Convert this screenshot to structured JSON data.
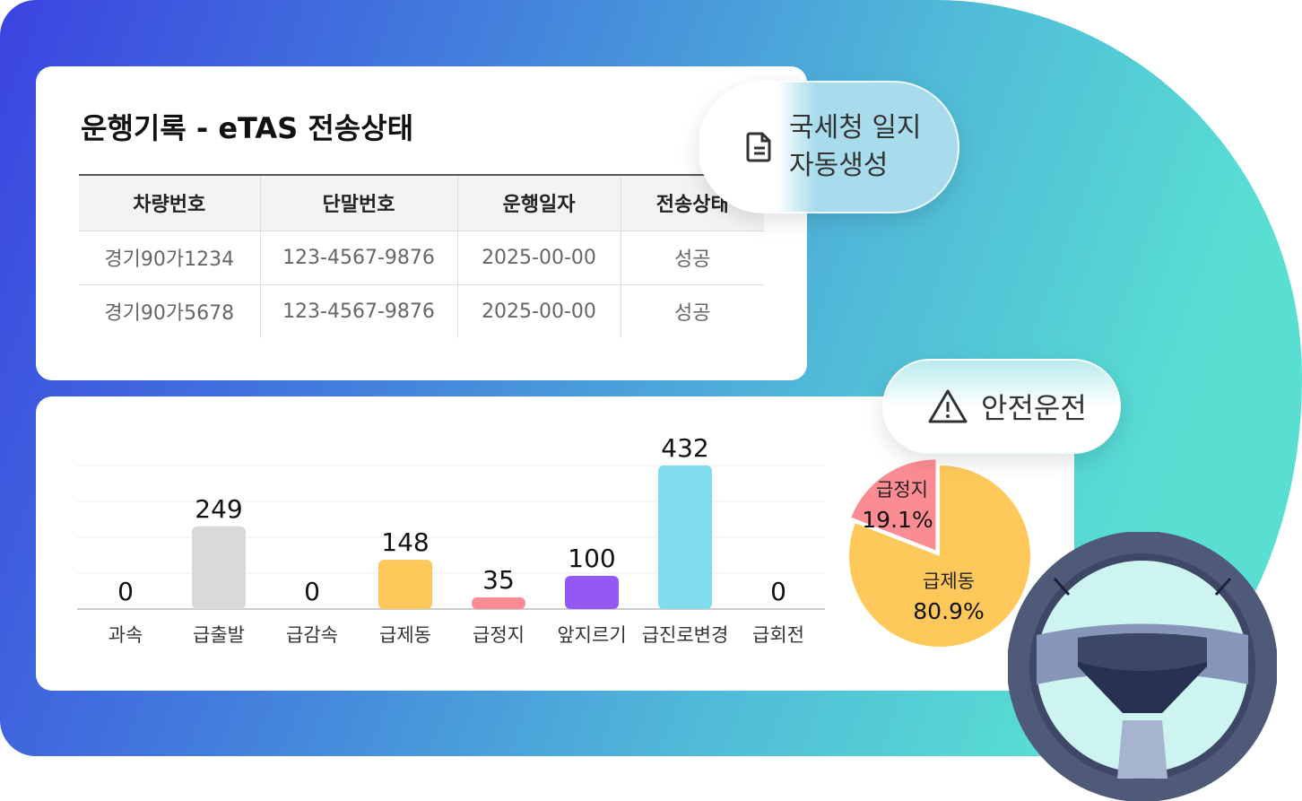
{
  "record": {
    "title": "운행기록 - eTAS 전송상태",
    "columns": [
      "차량번호",
      "단말번호",
      "운행일자",
      "전송상태"
    ],
    "rows": [
      [
        "경기90가1234",
        "123-4567-9876",
        "2025-00-00",
        "성공"
      ],
      [
        "경기90가5678",
        "123-4567-9876",
        "2025-00-00",
        "성공"
      ]
    ]
  },
  "badges": {
    "tax": {
      "line1": "국세청 일지",
      "line2": "자동생성",
      "icon": "document-icon"
    },
    "safe": {
      "label": "안전운전",
      "icon": "warning-icon"
    }
  },
  "colors": {
    "gray": "#d9d9d9",
    "yellow": "#fec85a",
    "pink": "#fc8c93",
    "purple": "#9458f4",
    "cyan": "#80dbec"
  },
  "chart_data": [
    {
      "type": "bar",
      "categories": [
        "과속",
        "급출발",
        "급감속",
        "급제동",
        "급정지",
        "앞지르기",
        "급진로변경",
        "급회전"
      ],
      "values": [
        0,
        249,
        0,
        148,
        35,
        100,
        432,
        0
      ],
      "colors": [
        "#d9d9d9",
        "#d9d9d9",
        "#d9d9d9",
        "#fec85a",
        "#fc8c93",
        "#9458f4",
        "#80dbec",
        "#d9d9d9"
      ],
      "grid": true
    },
    {
      "type": "pie",
      "slices": [
        {
          "label": "급정지",
          "value": 19.1,
          "text": "19.1%",
          "color": "#fc8c93"
        },
        {
          "label": "급제동",
          "value": 80.9,
          "text": "80.9%",
          "color": "#fec85a"
        }
      ]
    }
  ]
}
